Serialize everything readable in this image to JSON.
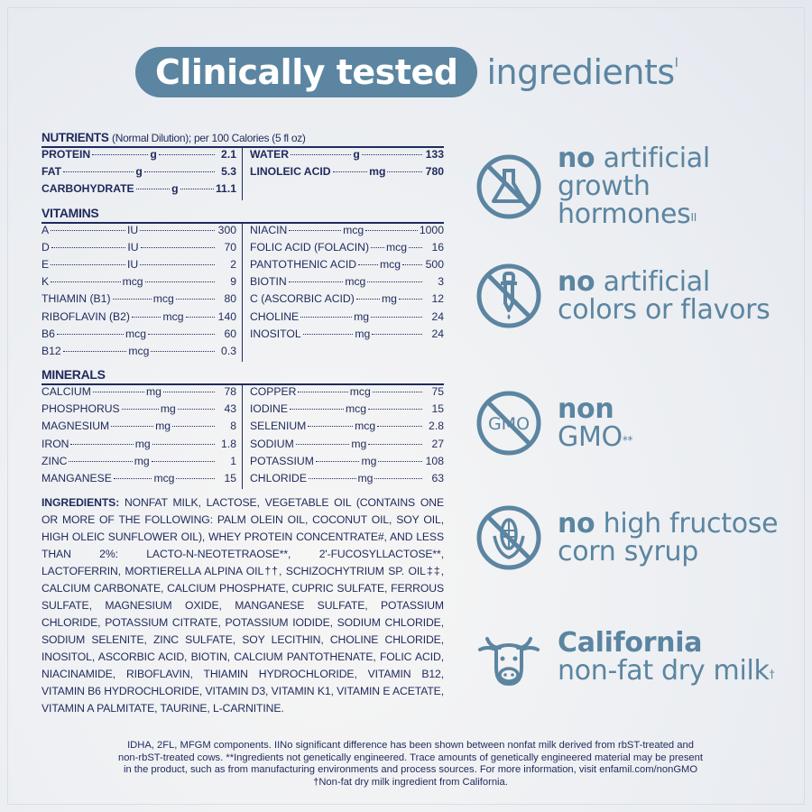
{
  "header": {
    "pill": "Clinically tested",
    "rest": "ingredients",
    "mark": "I"
  },
  "nutrients": {
    "title": "NUTRIENTS",
    "subtitle": "(Normal Dilution); per 100 Calories (5 fl oz)",
    "left": [
      {
        "name": "PROTEIN",
        "unit": "g",
        "value": "2.1"
      },
      {
        "name": "FAT",
        "unit": "g",
        "value": "5.3"
      },
      {
        "name": "CARBOHYDRATE",
        "unit": "g",
        "value": "11.1"
      }
    ],
    "right": [
      {
        "name": "WATER",
        "unit": "g",
        "value": "133"
      },
      {
        "name": "LINOLEIC ACID",
        "unit": "mg",
        "value": "780"
      }
    ]
  },
  "vitamins": {
    "title": "VITAMINS",
    "left": [
      {
        "name": "A",
        "unit": "IU",
        "value": "300"
      },
      {
        "name": "D",
        "unit": "IU",
        "value": "70"
      },
      {
        "name": "E",
        "unit": "IU",
        "value": "2"
      },
      {
        "name": "K",
        "unit": "mcg",
        "value": "9"
      },
      {
        "name": "THIAMIN (B1)",
        "unit": "mcg",
        "value": "80"
      },
      {
        "name": "RIBOFLAVIN (B2)",
        "unit": "mcg",
        "value": "140"
      },
      {
        "name": "B6",
        "unit": "mcg",
        "value": "60"
      },
      {
        "name": "B12",
        "unit": "mcg",
        "value": "0.3"
      }
    ],
    "right": [
      {
        "name": "NIACIN",
        "unit": "mcg",
        "value": "1000"
      },
      {
        "name": "FOLIC ACID (FOLACIN)",
        "unit": "mcg",
        "value": "16"
      },
      {
        "name": "PANTOTHENIC ACID",
        "unit": "mcg",
        "value": "500"
      },
      {
        "name": "BIOTIN",
        "unit": "mcg",
        "value": "3"
      },
      {
        "name": "C (ASCORBIC ACID)",
        "unit": "mg",
        "value": "12"
      },
      {
        "name": "CHOLINE",
        "unit": "mg",
        "value": "24"
      },
      {
        "name": "INOSITOL",
        "unit": "mg",
        "value": "24"
      }
    ]
  },
  "minerals": {
    "title": "MINERALS",
    "left": [
      {
        "name": "CALCIUM",
        "unit": "mg",
        "value": "78"
      },
      {
        "name": "PHOSPHORUS",
        "unit": "mg",
        "value": "43"
      },
      {
        "name": "MAGNESIUM",
        "unit": "mg",
        "value": "8"
      },
      {
        "name": "IRON",
        "unit": "mg",
        "value": "1.8"
      },
      {
        "name": "ZINC",
        "unit": "mg",
        "value": "1"
      },
      {
        "name": "MANGANESE",
        "unit": "mcg",
        "value": "15"
      }
    ],
    "right": [
      {
        "name": "COPPER",
        "unit": "mcg",
        "value": "75"
      },
      {
        "name": "IODINE",
        "unit": "mcg",
        "value": "15"
      },
      {
        "name": "SELENIUM",
        "unit": "mcg",
        "value": "2.8"
      },
      {
        "name": "SODIUM",
        "unit": "mg",
        "value": "27"
      },
      {
        "name": "POTASSIUM",
        "unit": "mg",
        "value": "108"
      },
      {
        "name": "CHLORIDE",
        "unit": "mg",
        "value": "63"
      }
    ]
  },
  "ingredients": {
    "label": "INGREDIENTS:",
    "text": "NONFAT MILK, LACTOSE, VEGETABLE OIL (CONTAINS ONE OR MORE OF THE FOLLOWING: PALM OLEIN OIL, COCONUT OIL, SOY OIL, HIGH OLEIC SUNFLOWER OIL), WHEY PROTEIN CONCENTRATE#, AND LESS THAN 2%: LACTO-N-NEOTETRAOSE**, 2'-FUCOSYLLACTOSE**, LACTOFERRIN, MORTIERELLA ALPINA OIL††, SCHIZOCHYTRIUM SP. OIL‡‡, CALCIUM CARBONATE, CALCIUM PHOSPHATE, CUPRIC SULFATE, FERROUS SULFATE, MAGNESIUM OXIDE, MANGANESE SULFATE, POTASSIUM CHLORIDE, POTASSIUM CITRATE, POTASSIUM IODIDE, SODIUM CHLORIDE, SODIUM SELENITE, ZINC SULFATE, SOY LECITHIN, CHOLINE CHLORIDE, INOSITOL, ASCORBIC ACID, BIOTIN, CALCIUM PANTOTHENATE, FOLIC ACID, NIACINAMIDE, RIBOFLAVIN, THIAMIN HYDROCHLORIDE, VITAMIN B12, VITAMIN B6 HYDROCHLORIDE, VITAMIN D3, VITAMIN K1, VITAMIN E ACETATE, VITAMIN A PALMITATE, TAURINE, L-CARNITINE."
  },
  "claims": [
    {
      "icon": "flask-crossed-icon",
      "bold": "no",
      "line1": " artificial",
      "line2": "growth",
      "line3": "hormones",
      "mark": "II"
    },
    {
      "icon": "dropper-crossed-icon",
      "bold": "no",
      "line1": " artificial",
      "line2": "colors or flavors",
      "line3": "",
      "mark": ""
    },
    {
      "icon": "gmo-crossed-icon",
      "bold": "non",
      "line1": "",
      "line2": "GMO",
      "line3": "",
      "mark": "**"
    },
    {
      "icon": "corn-crossed-icon",
      "bold": "no",
      "line1": " high fructose",
      "line2": "corn syrup",
      "line3": "",
      "mark": ""
    },
    {
      "icon": "cow-icon",
      "bold": "California",
      "line1": "",
      "line2": "non-fat dry milk",
      "line3": "",
      "mark": "†"
    }
  ],
  "footnotes": [
    "IDHA, 2FL, MFGM components. IINo significant difference has been shown between nonfat milk derived from rbST-treated and",
    "non-rbST-treated cows. **Ingredients not genetically engineered. Trace amounts of genetically engineered material may be present",
    "in the product, such as from manufacturing environments and process sources. For more information, visit enfamil.com/nonGMO",
    "†Non-fat dry milk ingredient from California."
  ],
  "colors": {
    "accent": "#5b85a1",
    "navy": "#1f2a5c"
  }
}
